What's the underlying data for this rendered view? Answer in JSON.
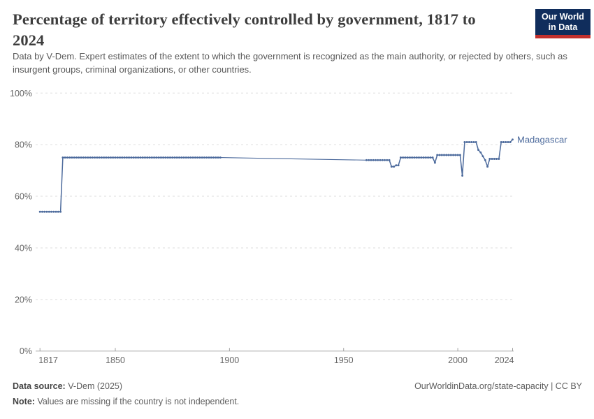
{
  "header": {
    "title_line1": "Percentage of territory effectively controlled by government, 1817 to",
    "title_line2": "2024",
    "subtitle": "Data by V-Dem. Expert estimates of the extent to which the government is recognized as the main authority, or rejected by others, such as insurgent groups, criminal organizations, or other countries.",
    "logo": {
      "line1": "Our World",
      "line2": "in Data",
      "bg_color": "#102d5c",
      "accent_color": "#c2302d"
    }
  },
  "chart_data": {
    "type": "line",
    "title": "Percentage of territory effectively controlled by government, 1817 to 2024",
    "entity_label": "Madagascar",
    "line_color": "#4c6a9c",
    "grid": true,
    "x_axis": {
      "min": 1817,
      "max": 2024,
      "tick_values": [
        1817,
        1850,
        1900,
        1950,
        2000,
        2024
      ],
      "tick_labels": [
        "1817",
        "1850",
        "1900",
        "1950",
        "2000",
        "2024"
      ]
    },
    "y_axis": {
      "min": 0,
      "max": 100,
      "tick_values": [
        0,
        20,
        40,
        60,
        80,
        100
      ],
      "tick_labels": [
        "0%",
        "20%",
        "40%",
        "60%",
        "80%",
        "100%"
      ]
    },
    "series": [
      {
        "name": "Madagascar",
        "segments": [
          {
            "style": "markers",
            "steps": [
              {
                "from": 1817,
                "to": 1826,
                "value": 54
              },
              {
                "from": 1827,
                "to": 1896,
                "value": 75
              }
            ]
          },
          {
            "style": "line",
            "points": [
              {
                "year": 1896,
                "value": 75
              },
              {
                "year": 1960,
                "value": 74
              }
            ]
          },
          {
            "style": "markers",
            "steps": [
              {
                "from": 1960,
                "to": 1970,
                "value": 74
              },
              {
                "from": 1971,
                "to": 1972,
                "value": 71.5
              },
              {
                "from": 1973,
                "to": 1974,
                "value": 72
              },
              {
                "from": 1975,
                "to": 1989,
                "value": 75
              },
              {
                "from": 1990,
                "to": 1990,
                "value": 73
              },
              {
                "from": 1991,
                "to": 2001,
                "value": 76
              },
              {
                "from": 2002,
                "to": 2002,
                "value": 68
              },
              {
                "from": 2003,
                "to": 2008,
                "value": 81
              },
              {
                "from": 2009,
                "to": 2009,
                "value": 78
              },
              {
                "from": 2010,
                "to": 2010,
                "value": 77
              },
              {
                "from": 2011,
                "to": 2011,
                "value": 75.5
              },
              {
                "from": 2012,
                "to": 2012,
                "value": 74
              },
              {
                "from": 2013,
                "to": 2013,
                "value": 71.5
              },
              {
                "from": 2014,
                "to": 2018,
                "value": 74.5
              },
              {
                "from": 2019,
                "to": 2023,
                "value": 81
              },
              {
                "from": 2024,
                "to": 2024,
                "value": 82
              }
            ]
          }
        ]
      }
    ]
  },
  "footer": {
    "data_source_label": "Data source:",
    "data_source_value": "V-Dem (2025)",
    "origin_url": "OurWorldinData.org/state-capacity | CC BY",
    "note_label": "Note:",
    "note_value": "Values are missing if the country is not independent."
  },
  "colors": {
    "title": "#3d3d3d",
    "subtitle": "#5a5a5a",
    "axis_label": "#666666",
    "gridline": "#dddddd",
    "axis_line": "#a3a3a3",
    "series_line": "#4c6a9c"
  }
}
